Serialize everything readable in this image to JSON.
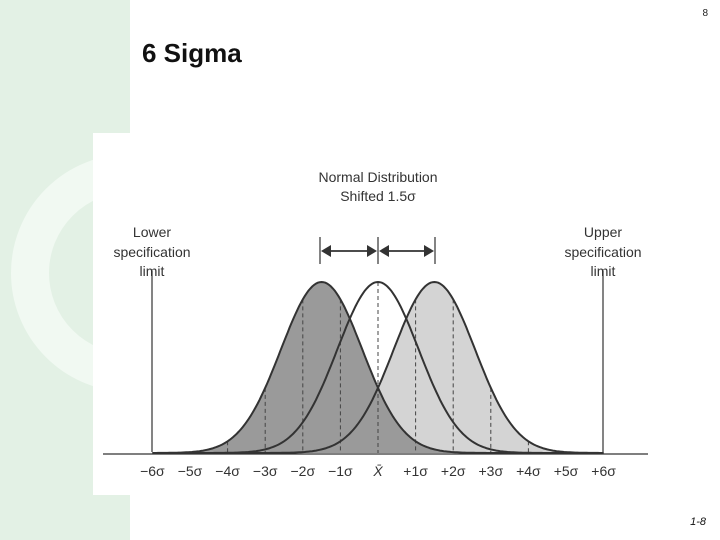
{
  "slide": {
    "number": "8",
    "title": "6 Sigma",
    "page_label": "1-8"
  },
  "figure": {
    "heading_line1": "Normal Distribution",
    "heading_line2": "Shifted 1.5σ",
    "lower_limit": [
      "Lower",
      "specification",
      "limit"
    ],
    "upper_limit": [
      "Upper",
      "specification",
      "limit"
    ],
    "ticks": [
      {
        "label": "−6σ",
        "value": -6
      },
      {
        "label": "−5σ",
        "value": -5
      },
      {
        "label": "−4σ",
        "value": -4
      },
      {
        "label": "−3σ",
        "value": -3
      },
      {
        "label": "−2σ",
        "value": -2
      },
      {
        "label": "−1σ",
        "value": -1
      },
      {
        "label": "X̄",
        "value": 0
      },
      {
        "label": "+1σ",
        "value": 1
      },
      {
        "label": "+2σ",
        "value": 2
      },
      {
        "label": "+3σ",
        "value": 3
      },
      {
        "label": "+4σ",
        "value": 4
      },
      {
        "label": "+5σ",
        "value": 5
      },
      {
        "label": "+6σ",
        "value": 6
      }
    ],
    "shift_sigma": 1.5,
    "curve_sigma_factor": 1.08,
    "colors": {
      "left_fill": "#9a9a9a",
      "right_fill": "#d4d4d4",
      "outline": "#333333",
      "background_band": "#e3f1e5",
      "deco_ring": "#f1f9f2"
    }
  }
}
